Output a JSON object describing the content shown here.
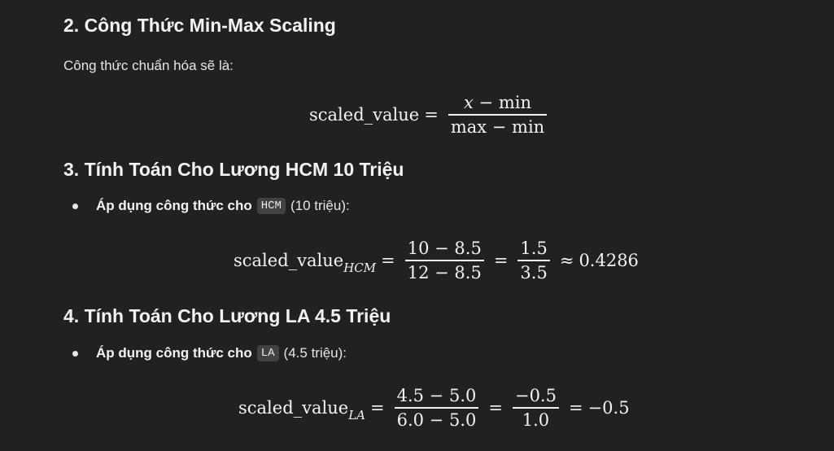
{
  "sections": [
    {
      "heading": "2. Công Thức Min-Max Scaling",
      "intro": "Công thức chuẩn hóa sẽ là:",
      "formula": {
        "lhs": "scaled_value",
        "eq": "=",
        "num_var": "x",
        "num_rest": " − min",
        "den": "max − min"
      }
    },
    {
      "heading": "3. Tính Toán Cho Lương HCM 10 Triệu",
      "bullet_bold": "Áp dụng công thức cho",
      "bullet_code": "HCM",
      "bullet_rest": "(10 triệu):",
      "formula": {
        "lhs": "scaled_value",
        "sub": "HCM",
        "eq1": "=",
        "num1": "10 − 8.5",
        "den1": "12 − 8.5",
        "eq2": "=",
        "num2": "1.5",
        "den2": "3.5",
        "approx": "≈",
        "result": "0.4286"
      }
    },
    {
      "heading": "4. Tính Toán Cho Lương LA 4.5 Triệu",
      "bullet_bold": "Áp dụng công thức cho",
      "bullet_code": "LA",
      "bullet_rest": "(4.5 triệu):",
      "formula": {
        "lhs": "scaled_value",
        "sub": "LA",
        "eq1": "=",
        "num1": "4.5 − 5.0",
        "den1": "6.0 − 5.0",
        "eq2": "=",
        "num2": "−0.5",
        "den2": "1.0",
        "eq3": "=",
        "result": "−0.5"
      }
    }
  ]
}
